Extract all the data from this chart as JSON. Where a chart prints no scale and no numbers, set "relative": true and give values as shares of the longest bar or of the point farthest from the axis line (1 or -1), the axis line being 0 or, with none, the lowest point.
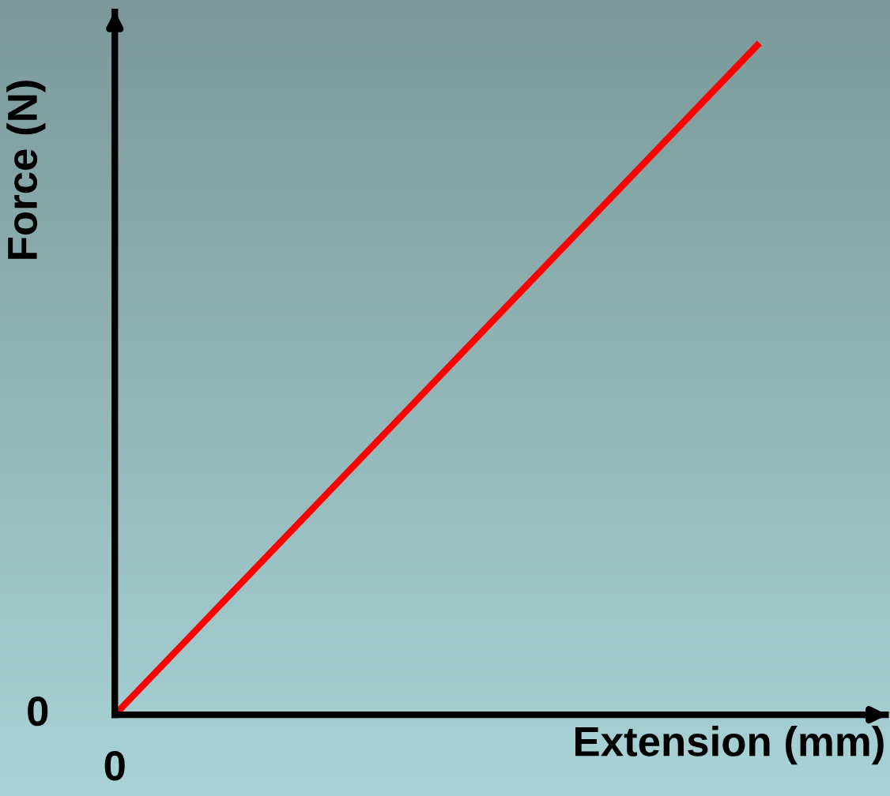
{
  "chart_data": {
    "type": "line",
    "relative": true,
    "xlabel": "Extension (mm)",
    "ylabel": "Force (N)",
    "categories": [
      null,
      null
    ],
    "series": [
      {
        "color": "#ff0000",
        "values": [
          0,
          1
        ]
      }
    ],
    "annotations": [
      "0",
      "0"
    ],
    "marker": "none",
    "line_style": "solid"
  }
}
